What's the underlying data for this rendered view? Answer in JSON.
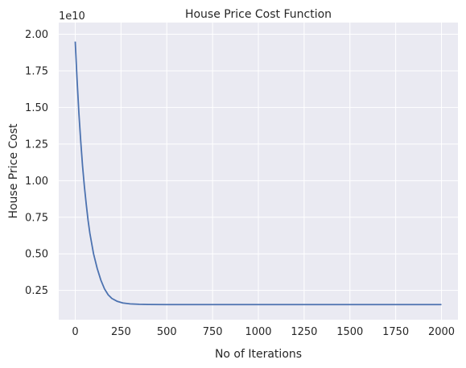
{
  "chart_data": {
    "type": "line",
    "title": "House Price Cost Function",
    "xlabel": "No of Iterations",
    "ylabel": "House Price Cost",
    "y_multiplier": "1e10",
    "xlim": [
      -90,
      2090
    ],
    "ylim": [
      0.05,
      2.08
    ],
    "x_ticks": [
      0,
      250,
      500,
      750,
      1000,
      1250,
      1500,
      1750,
      2000
    ],
    "x_tick_labels": [
      "0",
      "250",
      "500",
      "750",
      "1000",
      "1250",
      "1500",
      "1750",
      "2000"
    ],
    "y_ticks": [
      0.25,
      0.5,
      0.75,
      1.0,
      1.25,
      1.5,
      1.75,
      2.0
    ],
    "y_tick_labels": [
      "0.25",
      "0.50",
      "0.75",
      "1.00",
      "1.25",
      "1.50",
      "1.75",
      "2.00"
    ],
    "grid": true,
    "background": "#eaeaf2",
    "grid_color": "#ffffff",
    "series": [
      {
        "color": "#4c72b0",
        "x": [
          0,
          10,
          20,
          30,
          40,
          50,
          60,
          70,
          80,
          90,
          100,
          120,
          140,
          160,
          180,
          200,
          230,
          260,
          300,
          350,
          400,
          500,
          700,
          1000,
          1500,
          2000
        ],
        "y": [
          1.95,
          1.69,
          1.46,
          1.27,
          1.1,
          0.96,
          0.84,
          0.73,
          0.64,
          0.57,
          0.5,
          0.4,
          0.32,
          0.26,
          0.22,
          0.195,
          0.175,
          0.164,
          0.158,
          0.155,
          0.154,
          0.153,
          0.153,
          0.153,
          0.153,
          0.153
        ]
      }
    ]
  }
}
